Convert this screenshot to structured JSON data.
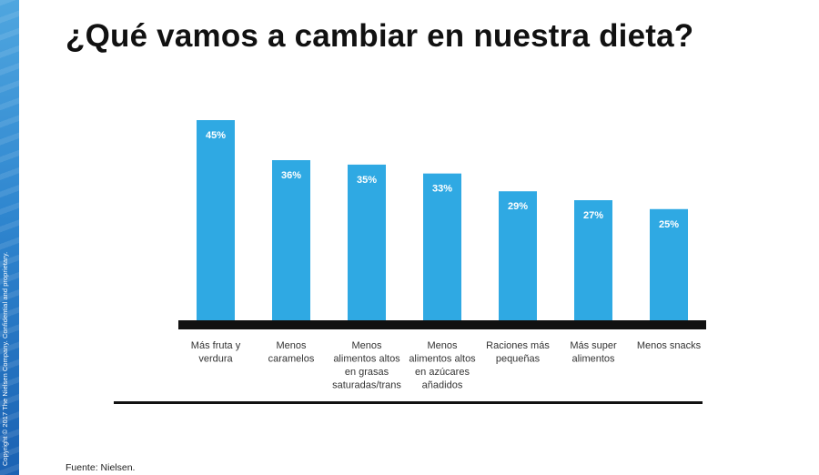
{
  "slide": {
    "title": "¿Qué vamos a cambiar en nuestra dieta?",
    "copyright": "Copyright © 2017 The Nielsen Company. Confidential and proprietary.",
    "source": "Fuente: Nielsen.",
    "colors": {
      "bar": "#2fa9e3",
      "bar_label": "#ffffff",
      "axis": "#111111",
      "side_band": "#2f86cf"
    }
  },
  "chart_data": {
    "type": "bar",
    "title": "",
    "xlabel": "",
    "ylabel": "",
    "ylim": [
      0,
      45
    ],
    "grid": false,
    "legend": "none",
    "categories": [
      [
        "Más fruta y",
        "verdura"
      ],
      [
        "Menos",
        "caramelos"
      ],
      [
        "Menos",
        "alimentos altos",
        "en grasas",
        "saturadas/trans"
      ],
      [
        "Menos",
        "alimentos altos",
        "en azúcares",
        "añadidos"
      ],
      [
        "Raciones más",
        "pequeñas"
      ],
      [
        "Más super",
        "alimentos"
      ],
      [
        "Menos snacks"
      ]
    ],
    "values": [
      45,
      36,
      35,
      33,
      29,
      27,
      25
    ],
    "value_labels": [
      "45%",
      "36%",
      "35%",
      "33%",
      "29%",
      "27%",
      "25%"
    ]
  }
}
